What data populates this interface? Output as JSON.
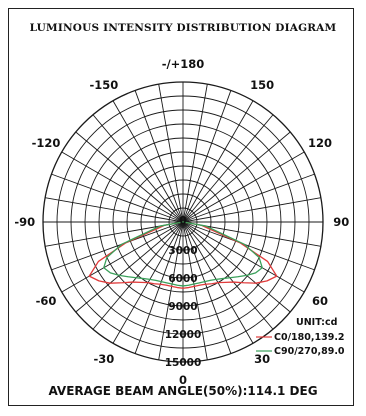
{
  "title": "LUMINOUS INTENSITY DISTRIBUTION DIAGRAM",
  "footer": "AVERAGE BEAM ANGLE(50%):114.1 DEG",
  "chart_data": {
    "type": "polar",
    "title": "LUMINOUS INTENSITY DISTRIBUTION DIAGRAM",
    "unit_label": "UNIT:cd",
    "angle_labels": [
      {
        "angle": 180,
        "text": "-/+180"
      },
      {
        "angle": -150,
        "text": "-150"
      },
      {
        "angle": 150,
        "text": "150"
      },
      {
        "angle": -120,
        "text": "-120"
      },
      {
        "angle": 120,
        "text": "120"
      },
      {
        "angle": -90,
        "text": "-90"
      },
      {
        "angle": 90,
        "text": "90"
      },
      {
        "angle": -60,
        "text": "-60"
      },
      {
        "angle": 60,
        "text": "60"
      },
      {
        "angle": -30,
        "text": "-30"
      },
      {
        "angle": 30,
        "text": "30"
      },
      {
        "angle": 0,
        "text": "0"
      }
    ],
    "ring_labels": [
      "3000",
      "6000",
      "9000",
      "12000",
      "15000"
    ],
    "ring_values": [
      3000,
      6000,
      9000,
      12000,
      15000
    ],
    "r_max": 15000,
    "angular_grid_step": 10,
    "series": [
      {
        "name": "C0/180,139.2",
        "color": "#e03a3a",
        "points": [
          [
            -90,
            0
          ],
          [
            -80,
            2000
          ],
          [
            -70,
            6500
          ],
          [
            -65,
            10000
          ],
          [
            -60,
            11600
          ],
          [
            -55,
            11000
          ],
          [
            -50,
            10200
          ],
          [
            -45,
            9200
          ],
          [
            -40,
            8400
          ],
          [
            -35,
            7900
          ],
          [
            -30,
            7500
          ],
          [
            -25,
            7300
          ],
          [
            -20,
            7100
          ],
          [
            -15,
            7000
          ],
          [
            -10,
            7000
          ],
          [
            -5,
            7050
          ],
          [
            0,
            7100
          ],
          [
            5,
            7050
          ],
          [
            10,
            7000
          ],
          [
            15,
            7000
          ],
          [
            20,
            7100
          ],
          [
            25,
            7300
          ],
          [
            30,
            7500
          ],
          [
            35,
            7900
          ],
          [
            40,
            8400
          ],
          [
            45,
            9200
          ],
          [
            50,
            10200
          ],
          [
            55,
            11000
          ],
          [
            60,
            11600
          ],
          [
            65,
            10000
          ],
          [
            70,
            6500
          ],
          [
            80,
            2000
          ],
          [
            90,
            0
          ]
        ]
      },
      {
        "name": "C90/270,89.0",
        "color": "#3aa05a",
        "points": [
          [
            -90,
            0
          ],
          [
            -80,
            2500
          ],
          [
            -70,
            7000
          ],
          [
            -65,
            9000
          ],
          [
            -60,
            9800
          ],
          [
            -55,
            9500
          ],
          [
            -50,
            8900
          ],
          [
            -45,
            8300
          ],
          [
            -40,
            7800
          ],
          [
            -35,
            7400
          ],
          [
            -30,
            7100
          ],
          [
            -25,
            6900
          ],
          [
            -20,
            6800
          ],
          [
            -15,
            6750
          ],
          [
            -10,
            6750
          ],
          [
            -5,
            6800
          ],
          [
            0,
            6850
          ],
          [
            5,
            6800
          ],
          [
            10,
            6750
          ],
          [
            15,
            6750
          ],
          [
            20,
            6800
          ],
          [
            25,
            6900
          ],
          [
            30,
            7100
          ],
          [
            35,
            7400
          ],
          [
            40,
            7800
          ],
          [
            45,
            8300
          ],
          [
            50,
            8900
          ],
          [
            55,
            9500
          ],
          [
            60,
            9800
          ],
          [
            65,
            9000
          ],
          [
            70,
            7000
          ],
          [
            80,
            2500
          ],
          [
            90,
            0
          ]
        ]
      }
    ],
    "legend_position": "bottom-right"
  }
}
